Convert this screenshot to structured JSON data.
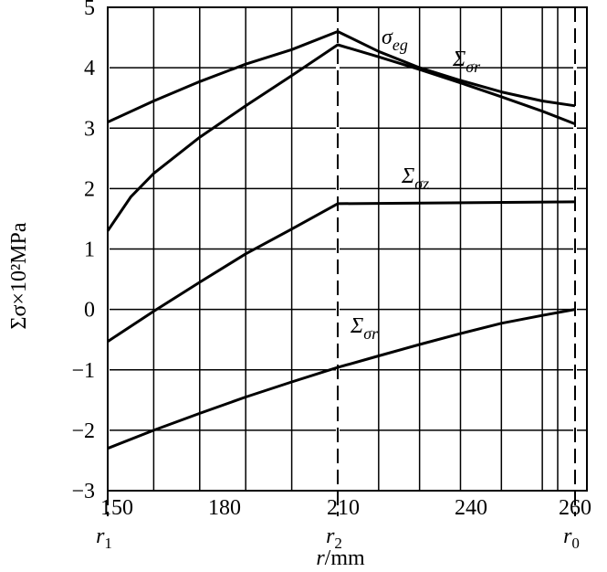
{
  "chart_data": {
    "type": "line",
    "xlabel": "r/mm",
    "ylabel": "Σσ×10²MPa",
    "x_ticks": [
      "150",
      "180",
      "210",
      "240",
      "260"
    ],
    "y_ticks": [
      "5",
      "4",
      "3",
      "2",
      "1",
      "0",
      "−1",
      "−2",
      "−3"
    ],
    "xlim": [
      150,
      260
    ],
    "ylim": [
      -3,
      5
    ],
    "grid": true,
    "markers": [
      {
        "label": "r",
        "sub": "1",
        "x": 150
      },
      {
        "label": "r",
        "sub": "2",
        "x": 200
      },
      {
        "label": "r",
        "sub": "0",
        "x": 258
      }
    ],
    "series": [
      {
        "name": "σeg",
        "label_main": "σ",
        "label_sub": "eg",
        "x": [
          150,
          160,
          170,
          180,
          190,
          200,
          210,
          220,
          230,
          240,
          250,
          258
        ],
        "values": [
          3.1,
          3.45,
          3.77,
          4.06,
          4.3,
          4.6,
          4.27,
          4.0,
          3.79,
          3.6,
          3.45,
          3.37
        ]
      },
      {
        "name": "Σσr",
        "label_main": "Σ",
        "label_sub": "σr",
        "x": [
          150,
          155,
          160,
          170,
          180,
          190,
          200,
          210,
          220,
          230,
          240,
          250,
          258
        ],
        "values": [
          1.3,
          1.86,
          2.25,
          2.85,
          3.37,
          3.87,
          4.38,
          4.18,
          3.97,
          3.75,
          3.52,
          3.28,
          3.07
        ]
      },
      {
        "name": "Σσz",
        "label_main": "Σ",
        "label_sub": "σz",
        "x": [
          150,
          160,
          170,
          180,
          190,
          200,
          258
        ],
        "values": [
          -0.53,
          -0.03,
          0.45,
          0.92,
          1.33,
          1.75,
          1.78
        ]
      },
      {
        "name": "Σσr",
        "label_main": "Σ",
        "label_sub": "σr",
        "x": [
          150,
          160,
          170,
          180,
          190,
          200,
          210,
          220,
          230,
          240,
          250,
          258
        ],
        "values": [
          -2.3,
          -2.0,
          -1.72,
          -1.45,
          -1.2,
          -0.96,
          -0.77,
          -0.58,
          -0.4,
          -0.23,
          -0.1,
          0
        ]
      }
    ]
  }
}
